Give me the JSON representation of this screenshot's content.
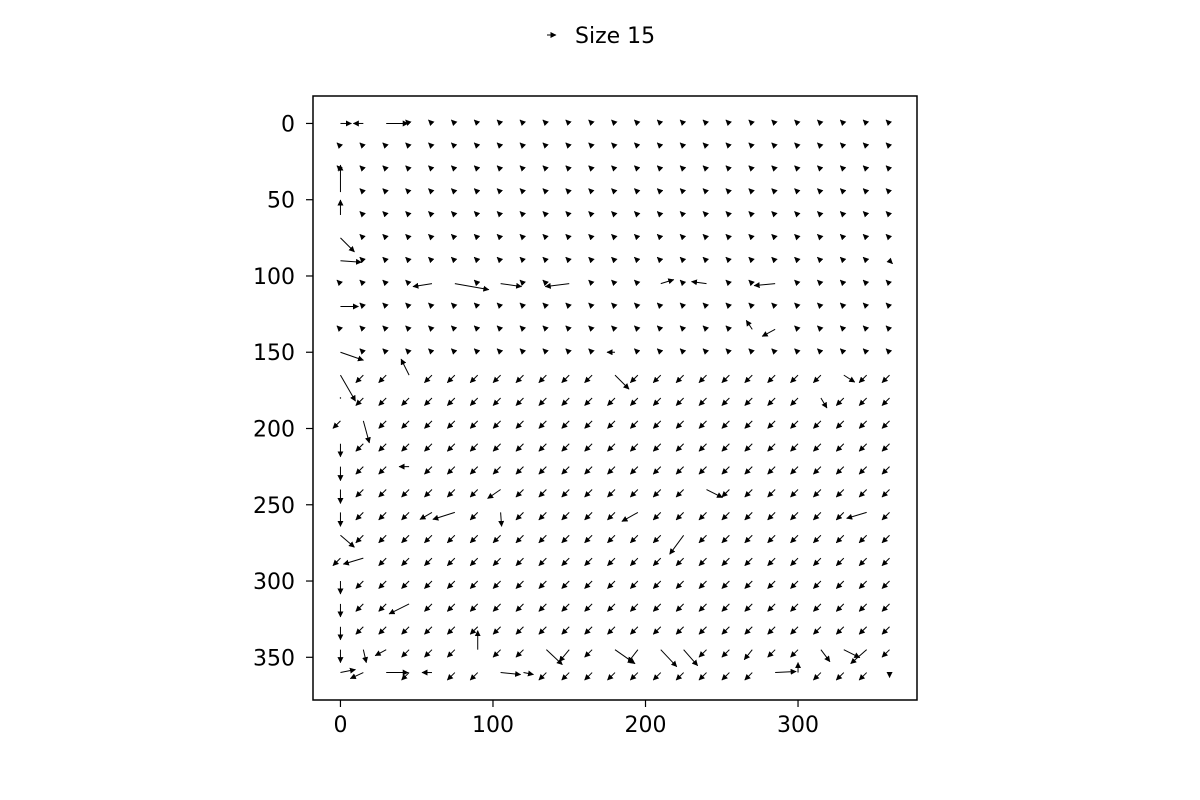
{
  "chart_data": {
    "type": "quiver",
    "title": "",
    "xlabel": "",
    "ylabel": "",
    "xlim": [
      -18,
      378
    ],
    "ylim": [
      378,
      -18
    ],
    "y_inverted": true,
    "grid": false,
    "x_ticks": [
      0,
      100,
      200,
      300
    ],
    "y_ticks": [
      0,
      50,
      100,
      150,
      200,
      250,
      300,
      350
    ],
    "x_tick_labels": [
      "0",
      "100",
      "200",
      "300"
    ],
    "y_tick_labels": [
      "0",
      "50",
      "100",
      "150",
      "200",
      "250",
      "300",
      "350"
    ],
    "grid_spacing": 15,
    "grid_x_range": [
      0,
      360
    ],
    "grid_y_range": [
      0,
      360
    ],
    "default_vector": [
      -0.35,
      -0.35
    ],
    "legend": {
      "placement": "top-center",
      "label": "Size 15",
      "marker": "arrow"
    },
    "vector_regions": [
      {
        "x_range": [
          0,
          360
        ],
        "y_range": [
          0,
          150
        ],
        "u": -0.35,
        "v": -0.35
      },
      {
        "x_range": [
          0,
          360
        ],
        "y_range": [
          165,
          360
        ],
        "u": -0.75,
        "v": 0.75
      }
    ],
    "vector_overrides": [
      {
        "x": 15,
        "y": 0,
        "u": -1.0,
        "v": 0.0
      },
      {
        "x": 30,
        "y": 0,
        "u": 2.2,
        "v": 0.0
      },
      {
        "x": 0,
        "y": 0,
        "u": 1.1,
        "v": 0.0
      },
      {
        "x": 0,
        "y": 45,
        "u": 0.0,
        "v": -2.7
      },
      {
        "x": 0,
        "y": 60,
        "u": 0.0,
        "v": -1.5
      },
      {
        "x": 0,
        "y": 75,
        "u": 1.4,
        "v": 1.4
      },
      {
        "x": 0,
        "y": 90,
        "u": 2.1,
        "v": 0.15
      },
      {
        "x": 0,
        "y": 120,
        "u": 1.8,
        "v": 0.0
      },
      {
        "x": 0,
        "y": 150,
        "u": 2.3,
        "v": 0.8
      },
      {
        "x": 0,
        "y": 165,
        "u": 1.5,
        "v": 2.6
      },
      {
        "x": 15,
        "y": 195,
        "u": 0.6,
        "v": 2.2
      },
      {
        "x": 45,
        "y": 165,
        "u": -0.8,
        "v": -1.6
      },
      {
        "x": 60,
        "y": 105,
        "u": -1.9,
        "v": 0.3
      },
      {
        "x": 75,
        "y": 105,
        "u": 3.4,
        "v": 0.6
      },
      {
        "x": 105,
        "y": 105,
        "u": 2.1,
        "v": 0.3
      },
      {
        "x": 150,
        "y": 105,
        "u": -2.4,
        "v": 0.3
      },
      {
        "x": 210,
        "y": 105,
        "u": 1.3,
        "v": -0.4
      },
      {
        "x": 240,
        "y": 105,
        "u": -1.5,
        "v": -0.2
      },
      {
        "x": 285,
        "y": 105,
        "u": -2.1,
        "v": 0.2
      },
      {
        "x": 285,
        "y": 135,
        "u": -1.3,
        "v": 0.7
      },
      {
        "x": 270,
        "y": 135,
        "u": -0.6,
        "v": -0.9
      },
      {
        "x": 180,
        "y": 150,
        "u": -0.8,
        "v": 0.0
      },
      {
        "x": 180,
        "y": 165,
        "u": 1.4,
        "v": 1.4
      },
      {
        "x": 330,
        "y": 165,
        "u": 1.1,
        "v": 0.7
      },
      {
        "x": 315,
        "y": 180,
        "u": 0.6,
        "v": 1.0
      },
      {
        "x": 0,
        "y": 180,
        "u": 0.0,
        "v": 0.0
      },
      {
        "x": 0,
        "y": 210,
        "u": 0.0,
        "v": 1.3
      },
      {
        "x": 0,
        "y": 225,
        "u": 0.0,
        "v": 1.4
      },
      {
        "x": 0,
        "y": 240,
        "u": 0.0,
        "v": 1.4
      },
      {
        "x": 0,
        "y": 255,
        "u": 0.0,
        "v": 1.4
      },
      {
        "x": 45,
        "y": 225,
        "u": -1.0,
        "v": 0.0
      },
      {
        "x": 105,
        "y": 240,
        "u": -1.3,
        "v": 0.9
      },
      {
        "x": 75,
        "y": 255,
        "u": -2.2,
        "v": 0.7
      },
      {
        "x": 60,
        "y": 255,
        "u": -1.2,
        "v": 0.7
      },
      {
        "x": 105,
        "y": 255,
        "u": 0.1,
        "v": 1.4
      },
      {
        "x": 195,
        "y": 255,
        "u": -1.6,
        "v": 0.9
      },
      {
        "x": 240,
        "y": 240,
        "u": 1.6,
        "v": 0.8
      },
      {
        "x": 345,
        "y": 255,
        "u": -2.0,
        "v": 0.6
      },
      {
        "x": 0,
        "y": 270,
        "u": 1.4,
        "v": 1.2
      },
      {
        "x": 15,
        "y": 285,
        "u": -2.0,
        "v": 0.6
      },
      {
        "x": 225,
        "y": 270,
        "u": -1.4,
        "v": 1.9
      },
      {
        "x": 0,
        "y": 300,
        "u": 0.0,
        "v": 1.3
      },
      {
        "x": 0,
        "y": 315,
        "u": 0.0,
        "v": 1.3
      },
      {
        "x": 0,
        "y": 330,
        "u": 0.0,
        "v": 1.3
      },
      {
        "x": 0,
        "y": 345,
        "u": 0.0,
        "v": 1.3
      },
      {
        "x": 45,
        "y": 315,
        "u": -2.0,
        "v": 1.0
      },
      {
        "x": 30,
        "y": 345,
        "u": -1.1,
        "v": 0.6
      },
      {
        "x": 15,
        "y": 345,
        "u": 0.3,
        "v": 1.3
      },
      {
        "x": 90,
        "y": 345,
        "u": 0.0,
        "v": -1.9
      },
      {
        "x": 135,
        "y": 345,
        "u": 1.6,
        "v": 1.5
      },
      {
        "x": 150,
        "y": 345,
        "u": -1.0,
        "v": 1.2
      },
      {
        "x": 180,
        "y": 345,
        "u": 2.0,
        "v": 1.4
      },
      {
        "x": 210,
        "y": 345,
        "u": 1.6,
        "v": 1.7
      },
      {
        "x": 225,
        "y": 345,
        "u": 1.4,
        "v": 1.6
      },
      {
        "x": 195,
        "y": 345,
        "u": -1.0,
        "v": 1.3
      },
      {
        "x": 270,
        "y": 345,
        "u": -0.8,
        "v": 1.0
      },
      {
        "x": 315,
        "y": 345,
        "u": 0.9,
        "v": 1.2
      },
      {
        "x": 330,
        "y": 345,
        "u": 1.6,
        "v": 0.8
      },
      {
        "x": 345,
        "y": 345,
        "u": -1.6,
        "v": 1.4
      },
      {
        "x": 0,
        "y": 360,
        "u": 1.5,
        "v": -0.3
      },
      {
        "x": 15,
        "y": 360,
        "u": -1.3,
        "v": 0.6
      },
      {
        "x": 30,
        "y": 360,
        "u": 2.2,
        "v": 0.0
      },
      {
        "x": 60,
        "y": 360,
        "u": -1.0,
        "v": 0.0
      },
      {
        "x": 105,
        "y": 360,
        "u": 2.0,
        "v": 0.2
      },
      {
        "x": 120,
        "y": 360,
        "u": 1.0,
        "v": 0.2
      },
      {
        "x": 285,
        "y": 360,
        "u": 2.1,
        "v": -0.1
      },
      {
        "x": 300,
        "y": 360,
        "u": 0.0,
        "v": -1.0
      },
      {
        "x": 360,
        "y": 360,
        "u": 0.0,
        "v": 0.5
      },
      {
        "x": 360,
        "y": 90,
        "u": 0.3,
        "v": 0.3
      }
    ]
  }
}
